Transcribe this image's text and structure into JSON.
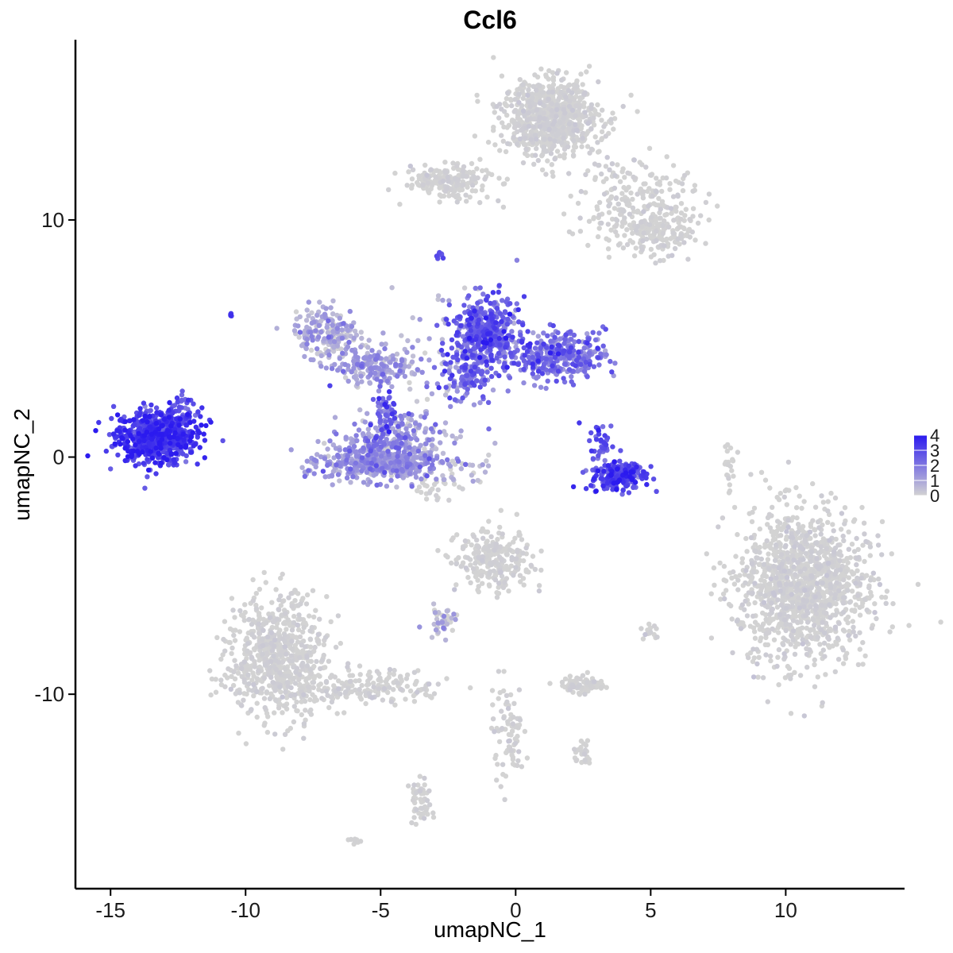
{
  "chart_data": {
    "type": "scatter",
    "title": "Ccl6",
    "xlabel": "umapNC_1",
    "ylabel": "umapNC_2",
    "xlim": [
      -16.3,
      14.4
    ],
    "ylim": [
      -18.2,
      17.6
    ],
    "x_ticks": [
      -15,
      -10,
      -5,
      0,
      5,
      10
    ],
    "x_tick_labels": [
      "-15",
      "-10",
      "-5",
      "0",
      "5",
      "10"
    ],
    "y_ticks": [
      -10,
      0,
      10
    ],
    "y_tick_labels": [
      "-10",
      "0",
      "10"
    ],
    "grid": false,
    "color_scale": {
      "low_color": "#d3d3d3",
      "high_color": "#2b1aef",
      "min": 0,
      "max": 4,
      "breaks": [
        0,
        1,
        2,
        3,
        4
      ],
      "break_labels": [
        "0",
        "1",
        "2",
        "3",
        "4"
      ],
      "legend_position": "right"
    },
    "clusters": [
      {
        "cx": -13.3,
        "cy": 0.9,
        "sx": 0.75,
        "sy": 0.55,
        "n": 700,
        "expr": 3.1,
        "expr_sd": 0.6,
        "max_expr": 4
      },
      {
        "cx": -12.2,
        "cy": 1.9,
        "sx": 0.35,
        "sy": 0.4,
        "n": 40,
        "expr": 2.8,
        "expr_sd": 0.6,
        "max_expr": 4
      },
      {
        "cx": -10.6,
        "cy": 6.0,
        "sx": 0.05,
        "sy": 0.05,
        "n": 4,
        "expr": 3.0,
        "expr_sd": 0.3,
        "max_expr": 4
      },
      {
        "cx": -2.8,
        "cy": 8.5,
        "sx": 0.1,
        "sy": 0.08,
        "n": 8,
        "expr": 3.0,
        "expr_sd": 0.3,
        "max_expr": 4
      },
      {
        "cx": -5.0,
        "cy": -0.2,
        "sx": 1.1,
        "sy": 0.4,
        "n": 500,
        "expr": 1.2,
        "expr_sd": 0.6,
        "max_expr": 4
      },
      {
        "cx": -4.5,
        "cy": 0.9,
        "sx": 0.9,
        "sy": 0.5,
        "n": 150,
        "expr": 1.3,
        "expr_sd": 0.7,
        "max_expr": 4
      },
      {
        "cx": -5.2,
        "cy": 3.8,
        "sx": 0.8,
        "sy": 0.4,
        "n": 200,
        "expr": 1.0,
        "expr_sd": 0.6,
        "max_expr": 4
      },
      {
        "cx": -7.0,
        "cy": 5.3,
        "sx": 0.6,
        "sy": 0.5,
        "n": 180,
        "expr": 0.8,
        "expr_sd": 0.6,
        "max_expr": 4
      },
      {
        "cx": -4.8,
        "cy": 1.8,
        "sx": 0.2,
        "sy": 0.5,
        "n": 60,
        "expr": 2.2,
        "expr_sd": 0.8,
        "max_expr": 4
      },
      {
        "cx": -1.1,
        "cy": 5.3,
        "sx": 0.6,
        "sy": 0.7,
        "n": 400,
        "expr": 2.4,
        "expr_sd": 0.7,
        "max_expr": 4
      },
      {
        "cx": 1.5,
        "cy": 4.3,
        "sx": 0.9,
        "sy": 0.5,
        "n": 350,
        "expr": 2.0,
        "expr_sd": 0.7,
        "max_expr": 4
      },
      {
        "cx": -1.8,
        "cy": 3.6,
        "sx": 0.5,
        "sy": 0.6,
        "n": 120,
        "expr": 2.0,
        "expr_sd": 0.8,
        "max_expr": 4
      },
      {
        "cx": 3.8,
        "cy": -0.8,
        "sx": 0.5,
        "sy": 0.3,
        "n": 230,
        "expr": 2.9,
        "expr_sd": 0.6,
        "max_expr": 4
      },
      {
        "cx": 3.2,
        "cy": 0.6,
        "sx": 0.25,
        "sy": 0.4,
        "n": 40,
        "expr": 2.8,
        "expr_sd": 0.6,
        "max_expr": 4
      },
      {
        "cx": -2.5,
        "cy": 4.0,
        "sx": 1.0,
        "sy": 2.0,
        "n": 60,
        "expr": 0.7,
        "expr_sd": 0.7,
        "max_expr": 4
      },
      {
        "cx": 1.3,
        "cy": 14.3,
        "sx": 0.9,
        "sy": 0.8,
        "n": 800,
        "expr": 0.0,
        "expr_sd": 0.1,
        "max_expr": 0.3
      },
      {
        "cx": -2.5,
        "cy": 11.6,
        "sx": 0.8,
        "sy": 0.35,
        "n": 200,
        "expr": 0.0,
        "expr_sd": 0.1,
        "max_expr": 0.3
      },
      {
        "cx": 4.5,
        "cy": 10.6,
        "sx": 1.2,
        "sy": 1.0,
        "n": 250,
        "expr": 0.0,
        "expr_sd": 0.1,
        "max_expr": 0.3
      },
      {
        "cx": 5.3,
        "cy": 9.5,
        "sx": 0.6,
        "sy": 0.4,
        "n": 120,
        "expr": 0.0,
        "expr_sd": 0.1,
        "max_expr": 0.3
      },
      {
        "cx": 10.6,
        "cy": -5.5,
        "sx": 1.2,
        "sy": 1.6,
        "n": 1300,
        "expr": 0.0,
        "expr_sd": 0.12,
        "max_expr": 1.2
      },
      {
        "cx": -8.8,
        "cy": -8.5,
        "sx": 0.9,
        "sy": 1.3,
        "n": 700,
        "expr": 0.0,
        "expr_sd": 0.1,
        "max_expr": 1.2
      },
      {
        "cx": -5.5,
        "cy": -9.7,
        "sx": 1.4,
        "sy": 0.4,
        "n": 180,
        "expr": 0.0,
        "expr_sd": 0.1,
        "max_expr": 0.3
      },
      {
        "cx": -0.8,
        "cy": -4.4,
        "sx": 0.7,
        "sy": 0.6,
        "n": 250,
        "expr": 0.0,
        "expr_sd": 0.1,
        "max_expr": 1.0
      },
      {
        "cx": 2.5,
        "cy": -9.6,
        "sx": 0.4,
        "sy": 0.2,
        "n": 80,
        "expr": 0.0,
        "expr_sd": 0.1,
        "max_expr": 1.5
      },
      {
        "cx": -0.3,
        "cy": -11.5,
        "sx": 0.3,
        "sy": 1.0,
        "n": 80,
        "expr": 0.0,
        "expr_sd": 0.1,
        "max_expr": 0.5
      },
      {
        "cx": -3.5,
        "cy": -14.5,
        "sx": 0.2,
        "sy": 0.5,
        "n": 50,
        "expr": 0.0,
        "expr_sd": 0.1,
        "max_expr": 0.5
      },
      {
        "cx": -2.7,
        "cy": -6.9,
        "sx": 0.3,
        "sy": 0.3,
        "n": 40,
        "expr": 0.3,
        "expr_sd": 0.8,
        "max_expr": 3.0
      },
      {
        "cx": 2.5,
        "cy": -12.5,
        "sx": 0.2,
        "sy": 0.2,
        "n": 25,
        "expr": 0.0,
        "expr_sd": 0.1,
        "max_expr": 0.5
      },
      {
        "cx": 7.9,
        "cy": -0.5,
        "sx": 0.1,
        "sy": 0.6,
        "n": 20,
        "expr": 0.0,
        "expr_sd": 0.05,
        "max_expr": 0.2
      },
      {
        "cx": 5.0,
        "cy": -7.4,
        "sx": 0.2,
        "sy": 0.2,
        "n": 15,
        "expr": 0.0,
        "expr_sd": 0.1,
        "max_expr": 1.0
      },
      {
        "cx": -6.0,
        "cy": -16.2,
        "sx": 0.1,
        "sy": 0.1,
        "n": 8,
        "expr": 0.0,
        "expr_sd": 0.05,
        "max_expr": 0.2
      },
      {
        "cx": -3.1,
        "cy": -1.5,
        "sx": 0.5,
        "sy": 0.4,
        "n": 25,
        "expr": 0.0,
        "expr_sd": 0.1,
        "max_expr": 0.3
      },
      {
        "cx": -1.8,
        "cy": -0.5,
        "sx": 0.6,
        "sy": 0.3,
        "n": 25,
        "expr": 0.3,
        "expr_sd": 0.6,
        "max_expr": 2.5
      }
    ],
    "n_cells_approx": 8700
  }
}
